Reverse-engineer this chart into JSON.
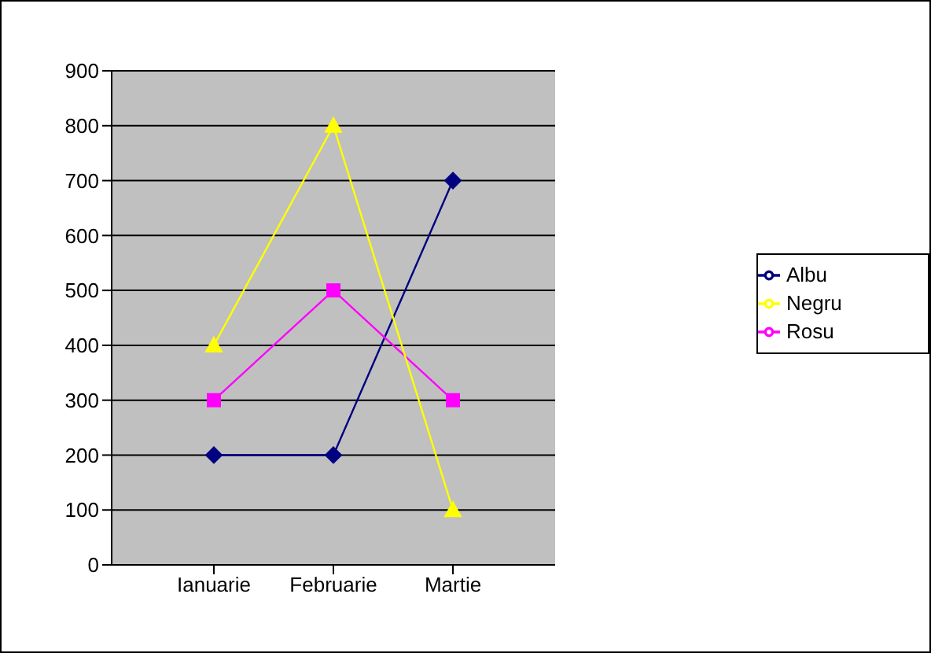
{
  "chart_data": {
    "type": "line",
    "categories": [
      "Ianuarie",
      "Februarie",
      "Martie"
    ],
    "series": [
      {
        "name": "Albu",
        "color": "#000080",
        "marker": "diamond",
        "values": [
          200,
          200,
          700
        ]
      },
      {
        "name": "Rosu",
        "color": "#ff00ff",
        "marker": "square",
        "values": [
          300,
          500,
          300
        ]
      },
      {
        "name": "Negru",
        "color": "#ffff00",
        "marker": "triangle",
        "values": [
          400,
          800,
          100
        ]
      }
    ],
    "ylim": [
      0,
      900
    ],
    "yticks": [
      0,
      100,
      200,
      300,
      400,
      500,
      600,
      700,
      800,
      900
    ],
    "grid": "y",
    "legend": "right"
  }
}
